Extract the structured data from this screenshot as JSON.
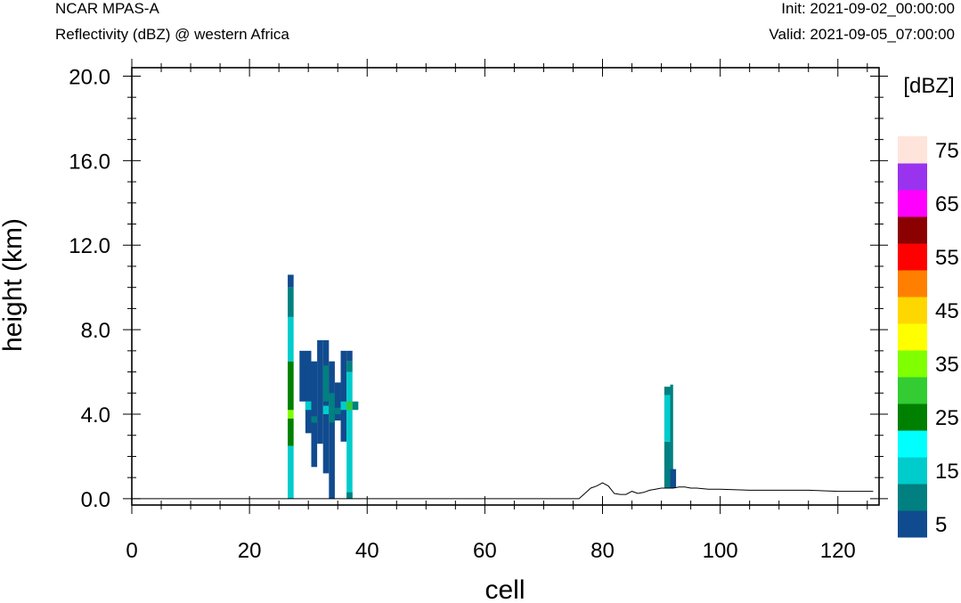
{
  "header": {
    "model": "NCAR MPAS-A",
    "field": "Reflectivity (dBZ) @ western Africa",
    "init": "Init: 2021-09-02_00:00:00",
    "valid": "Valid: 2021-09-05_07:00:00"
  },
  "chart_data": {
    "type": "heatmap",
    "xlabel": "cell",
    "ylabel": "height (km)",
    "xlim": [
      0,
      127
    ],
    "ylim": [
      -0.3,
      20.4
    ],
    "x_ticks": [
      "0",
      "20",
      "40",
      "60",
      "80",
      "100",
      "120"
    ],
    "x_tick_values": [
      0,
      20,
      40,
      60,
      80,
      100,
      120
    ],
    "y_ticks": [
      "0.0",
      "4.0",
      "8.0",
      "12.0",
      "16.0",
      "20.0"
    ],
    "y_tick_values": [
      0,
      4,
      8,
      12,
      16,
      20
    ],
    "colorbar": {
      "unit_label": "[dBZ]",
      "levels": [
        {
          "lo": 0,
          "hi": 5,
          "color": "#114b8f"
        },
        {
          "lo": 5,
          "hi": 10,
          "color": "#008080"
        },
        {
          "lo": 10,
          "hi": 15,
          "color": "#00cccc"
        },
        {
          "lo": 15,
          "hi": 20,
          "color": "#00ffff"
        },
        {
          "lo": 20,
          "hi": 25,
          "color": "#008000"
        },
        {
          "lo": 25,
          "hi": 30,
          "color": "#33cc33"
        },
        {
          "lo": 30,
          "hi": 35,
          "color": "#80ff00"
        },
        {
          "lo": 35,
          "hi": 40,
          "color": "#ffff00"
        },
        {
          "lo": 40,
          "hi": 45,
          "color": "#ffd700"
        },
        {
          "lo": 45,
          "hi": 50,
          "color": "#ff8000"
        },
        {
          "lo": 50,
          "hi": 55,
          "color": "#ff0000"
        },
        {
          "lo": 55,
          "hi": 60,
          "color": "#8b0000"
        },
        {
          "lo": 60,
          "hi": 65,
          "color": "#ff00ff"
        },
        {
          "lo": 65,
          "hi": 70,
          "color": "#9933ee"
        },
        {
          "lo": 70,
          "hi": 75,
          "color": "#ffe4dc"
        }
      ],
      "tick_labels": [
        "5",
        "15",
        "25",
        "35",
        "45",
        "55",
        "65",
        "75"
      ]
    },
    "cells": [
      {
        "x0": 26.5,
        "x1": 27.5,
        "y0": 0.0,
        "y1": 2.5,
        "dbz": 12
      },
      {
        "x0": 26.5,
        "x1": 27.5,
        "y0": 2.5,
        "y1": 3.8,
        "dbz": 22
      },
      {
        "x0": 26.5,
        "x1": 27.5,
        "y0": 3.8,
        "y1": 4.2,
        "dbz": 32
      },
      {
        "x0": 26.5,
        "x1": 27.5,
        "y0": 4.2,
        "y1": 6.5,
        "dbz": 22
      },
      {
        "x0": 26.5,
        "x1": 27.5,
        "y0": 6.5,
        "y1": 8.6,
        "dbz": 12
      },
      {
        "x0": 26.5,
        "x1": 27.5,
        "y0": 8.6,
        "y1": 10.0,
        "dbz": 7
      },
      {
        "x0": 26.5,
        "x1": 27.5,
        "y0": 10.0,
        "y1": 10.6,
        "dbz": 3
      },
      {
        "x0": 28.5,
        "x1": 30.5,
        "y0": 4.6,
        "y1": 7.0,
        "dbz": 3
      },
      {
        "x0": 29.5,
        "x1": 30.5,
        "y0": 3.1,
        "y1": 4.6,
        "dbz": 3
      },
      {
        "x0": 29.5,
        "x1": 30.5,
        "y0": 4.2,
        "y1": 4.6,
        "dbz": 12
      },
      {
        "x0": 30.5,
        "x1": 31.5,
        "y0": 1.5,
        "y1": 6.5,
        "dbz": 3
      },
      {
        "x0": 30.5,
        "x1": 31.5,
        "y0": 3.6,
        "y1": 3.9,
        "dbz": 7
      },
      {
        "x0": 31.5,
        "x1": 32.5,
        "y0": 2.6,
        "y1": 7.5,
        "dbz": 3
      },
      {
        "x0": 32.5,
        "x1": 33.5,
        "y0": 1.2,
        "y1": 7.5,
        "dbz": 3
      },
      {
        "x0": 32.5,
        "x1": 33.5,
        "y0": 4.6,
        "y1": 6.3,
        "dbz": 7
      },
      {
        "x0": 32.5,
        "x1": 33.5,
        "y0": 4.0,
        "y1": 4.4,
        "dbz": 12
      },
      {
        "x0": 33.5,
        "x1": 34.5,
        "y0": 0.0,
        "y1": 6.5,
        "dbz": 3
      },
      {
        "x0": 33.5,
        "x1": 34.5,
        "y0": 3.6,
        "y1": 5.0,
        "dbz": 7
      },
      {
        "x0": 34.5,
        "x1": 35.5,
        "y0": 3.7,
        "y1": 5.5,
        "dbz": 3
      },
      {
        "x0": 34.5,
        "x1": 35.5,
        "y0": 4.0,
        "y1": 4.3,
        "dbz": 7
      },
      {
        "x0": 35.5,
        "x1": 36.5,
        "y0": 2.7,
        "y1": 7.0,
        "dbz": 3
      },
      {
        "x0": 35.5,
        "x1": 36.5,
        "y0": 4.2,
        "y1": 4.6,
        "dbz": 12
      },
      {
        "x0": 36.5,
        "x1": 37.5,
        "y0": 0.0,
        "y1": 6.0,
        "dbz": 12
      },
      {
        "x0": 36.5,
        "x1": 37.5,
        "y0": 6.0,
        "y1": 6.5,
        "dbz": 7
      },
      {
        "x0": 36.5,
        "x1": 37.5,
        "y0": 6.5,
        "y1": 7.0,
        "dbz": 3
      },
      {
        "x0": 36.5,
        "x1": 37.5,
        "y0": 4.2,
        "y1": 4.6,
        "dbz": 27
      },
      {
        "x0": 36.5,
        "x1": 37.5,
        "y0": 0.0,
        "y1": 0.3,
        "dbz": 7
      },
      {
        "x0": 37.5,
        "x1": 38.5,
        "y0": 4.2,
        "y1": 4.6,
        "dbz": 7
      },
      {
        "x0": 90.5,
        "x1": 91.5,
        "y0": 0.5,
        "y1": 2.7,
        "dbz": 7
      },
      {
        "x0": 90.5,
        "x1": 91.5,
        "y0": 2.7,
        "y1": 4.9,
        "dbz": 12
      },
      {
        "x0": 90.5,
        "x1": 91.5,
        "y0": 4.9,
        "y1": 5.3,
        "dbz": 7
      },
      {
        "x0": 91.5,
        "x1": 92.0,
        "y0": 0.5,
        "y1": 5.4,
        "dbz": 7
      },
      {
        "x0": 91.5,
        "x1": 92.5,
        "y0": 0.5,
        "y1": 1.4,
        "dbz": 3
      }
    ],
    "terrain": {
      "x": [
        0,
        76,
        77,
        78,
        79,
        80,
        81,
        82,
        83,
        84,
        85,
        86,
        87,
        88,
        89,
        90,
        91,
        92,
        93,
        94,
        95,
        96,
        98,
        100,
        105,
        110,
        115,
        120,
        126
      ],
      "y": [
        0.0,
        0.0,
        0.25,
        0.5,
        0.6,
        0.75,
        0.6,
        0.25,
        0.2,
        0.2,
        0.35,
        0.25,
        0.3,
        0.4,
        0.45,
        0.5,
        0.5,
        0.5,
        0.55,
        0.55,
        0.5,
        0.5,
        0.45,
        0.45,
        0.4,
        0.4,
        0.4,
        0.35,
        0.35
      ]
    }
  }
}
